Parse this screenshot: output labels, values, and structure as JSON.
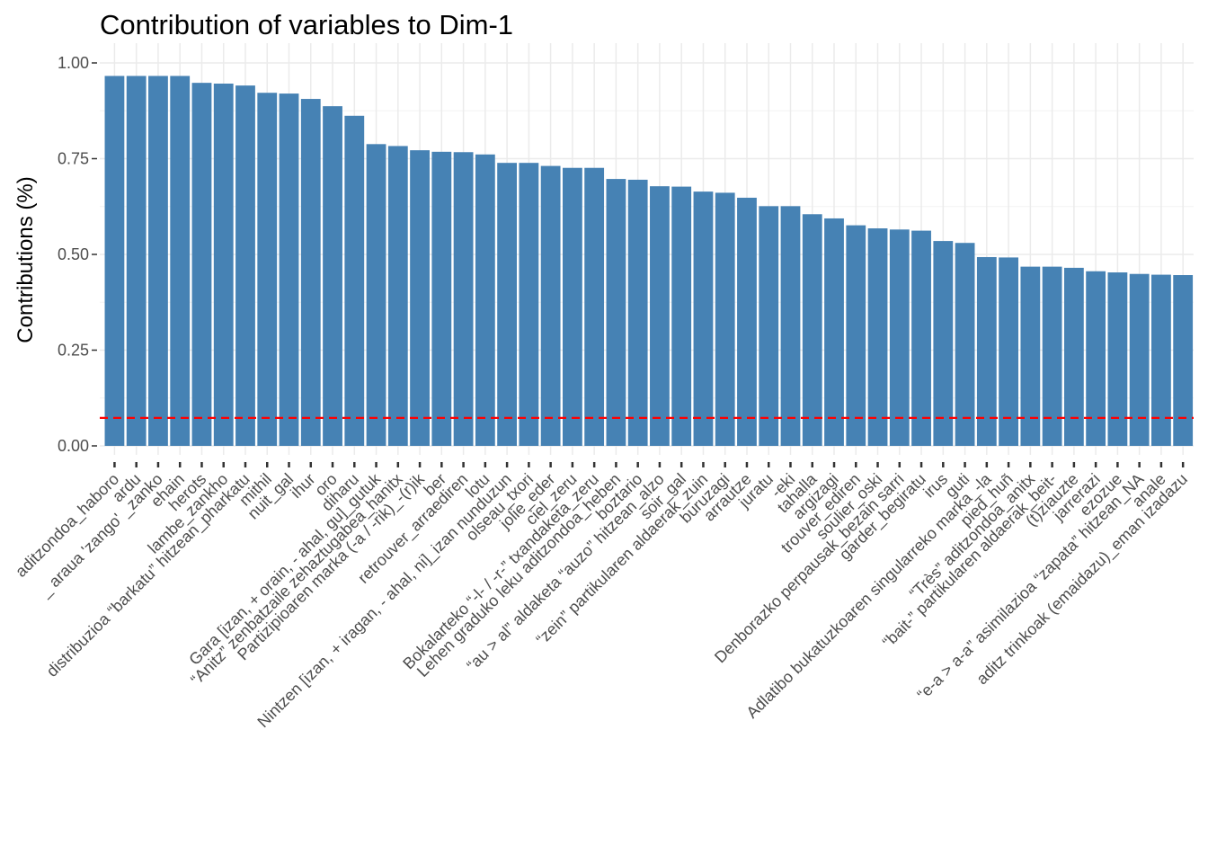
{
  "chart_data": {
    "type": "bar",
    "title": "Contribution of variables to Dim-1",
    "xlabel": "",
    "ylabel": "Contributions (%)",
    "ylim": [
      0,
      1.0
    ],
    "yticks": [
      "0.00",
      "0.25",
      "0.50",
      "0.75",
      "1.00"
    ],
    "bar_color": "#4682B4",
    "reference_line": {
      "value": 0.073,
      "color": "#FF0000",
      "style": "dashed"
    },
    "grid": true,
    "categories": [
      "aditzondoa_haboro",
      "ardu",
      "_ araua 'zango' _zanko",
      "ehain",
      "herots",
      "lambe_zankho",
      "distribuzioa “barkatu” hitzean_pharkatu",
      "mithil",
      "nuit_gal",
      "ihur",
      "oro",
      "diharu",
      "Gara [izan, + orain, - ahal, gu]_gutuk",
      "“Anitz” zenbatzaile zehaztugabea_hanitx",
      "Partizipioaren marka (-a / -rik)_-(r)ik",
      "ber",
      "retrouver_arraediren",
      "lotu",
      "Nintzen [izan, + iragan, - ahal, ni]_izan nunduzun",
      "olseau_txori",
      "jolie_eder",
      "ciel_zeru",
      "Bokalarteko “-l- / -r-” txandaketa_zeru",
      "Lehen graduko leku aditzondoa_heben",
      "boztario",
      "“au > al” aldaketa “auzo” hitzean_alzo",
      "soir_gal",
      "“zein” partikularen aldaerak_zuin",
      "buruzagi",
      "arrautze",
      "juratu",
      "-eki",
      "tahalla",
      "argizagi",
      "trouver_ediren",
      "soulier_oski",
      "Denborazko perpausak_bezain sarri",
      "garder_begiratu",
      "irus",
      "guti",
      "Adlatibo bukatuzkoaren singularreko marka_-la",
      "pied_huñ",
      "“Très” aditzondoa_anitx",
      "“bait-” partikularen aldaerak_beit-",
      "(t)ziauzte",
      "jarrerazi",
      "ezozue",
      "“e-a > a-a” asimilazioa “zapata” hitzean_NA",
      "anale",
      "aditz trinkoak (emaidazu)_eman izadazu"
    ],
    "values": [
      0.966,
      0.966,
      0.966,
      0.966,
      0.948,
      0.946,
      0.941,
      0.922,
      0.92,
      0.906,
      0.887,
      0.862,
      0.788,
      0.783,
      0.772,
      0.768,
      0.767,
      0.761,
      0.739,
      0.739,
      0.731,
      0.726,
      0.726,
      0.697,
      0.695,
      0.678,
      0.677,
      0.664,
      0.661,
      0.648,
      0.626,
      0.626,
      0.605,
      0.594,
      0.576,
      0.568,
      0.565,
      0.562,
      0.535,
      0.53,
      0.493,
      0.492,
      0.468,
      0.468,
      0.465,
      0.456,
      0.453,
      0.449,
      0.447,
      0.446
    ]
  }
}
